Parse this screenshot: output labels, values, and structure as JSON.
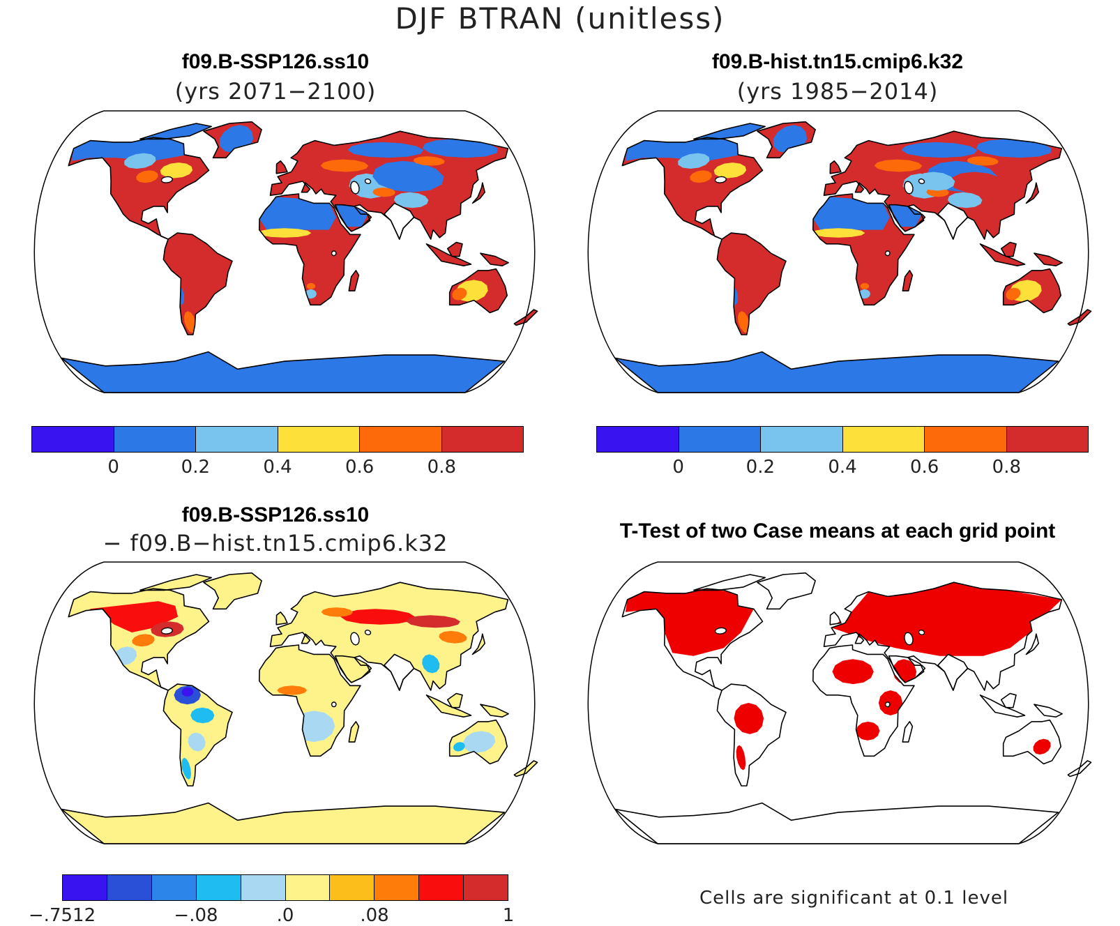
{
  "figure_title": "DJF BTRAN (unitless)",
  "panels": [
    {
      "title": "f09.B-SSP126.ss10",
      "subtitle": "(yrs 2071−2100)",
      "scheme": "abs"
    },
    {
      "title": "f09.B-hist.tn15.cmip6.k32",
      "subtitle": "(yrs 1985−2014)",
      "scheme": "abs_hist"
    },
    {
      "title": "f09.B-SSP126.ss10",
      "subtitle": "− f09.B−hist.tn15.cmip6.k32",
      "scheme": "diff"
    },
    {
      "title": "T-Test of two Case means at each grid point",
      "subtitle": "",
      "scheme": "ttest"
    }
  ],
  "colorbar_abs": {
    "colors": [
      "#3a14f0",
      "#2b78e6",
      "#78c4ee",
      "#fde03a",
      "#fd6a0a",
      "#d42c2c"
    ],
    "tick_labels": [
      "0",
      "0.2",
      "0.4",
      "0.6",
      "0.8"
    ]
  },
  "colorbar_diff": {
    "colors": [
      "#3a14f0",
      "#2b50d8",
      "#2c86ea",
      "#1fbcf2",
      "#a9d9f2",
      "#fdf38a",
      "#fcbe1a",
      "#fd7c0a",
      "#fa0d0d",
      "#d42c2c"
    ],
    "tick_labels": [
      "−.7512",
      "−.08",
      ".0",
      ".08",
      "1"
    ]
  },
  "significance_note": "Cells are significant at 0.1 level",
  "colors": {
    "ocean": "#ffffff",
    "coast": "#000000",
    "significant": "#ee0000",
    "antarctica_abs": "#2b78e6",
    "antarctica_diff": "#fdf38a"
  }
}
